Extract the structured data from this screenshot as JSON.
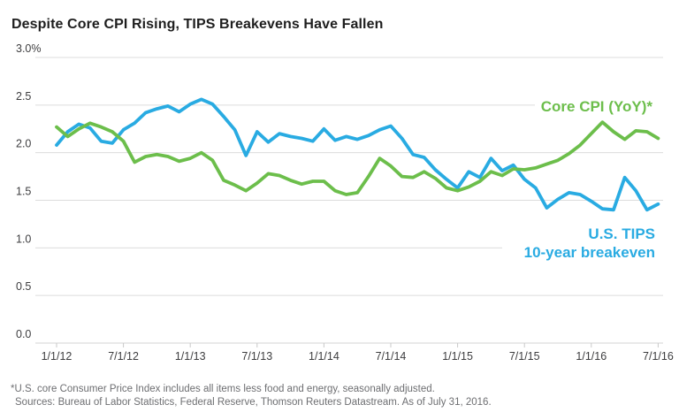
{
  "title": "Despite Core CPI Rising, TIPS Breakevens Have Fallen",
  "labels": {
    "core_cpi_label": "Core CPI (YoY)*",
    "tips_label_line1": "U.S. TIPS",
    "tips_label_line2": "10-year breakeven"
  },
  "footnotes": {
    "line1": "*U.S. core Consumer Price Index includes all items less food and energy, seasonally adjusted.",
    "line2": "Sources: Bureau of Labor Statistics, Federal Reserve, Thomson Reuters Datastream. As of July 31, 2016."
  },
  "colors": {
    "core_cpi_green": "#6cbe4b",
    "tips_blue": "#29abe2",
    "gridline": "#dcdcdc",
    "axis_line": "#d3d3d3",
    "tick": "#c9c9c9",
    "axis_text": "#3d3d3f",
    "title_text": "#1e1e1e",
    "footnote_text": "#6d6e71"
  },
  "chart_data": {
    "type": "line",
    "title": "Despite Core CPI Rising, TIPS Breakevens Have Fallen",
    "xlabel": "",
    "ylabel": "",
    "ylim": [
      0.0,
      3.0
    ],
    "grid": "horizontal",
    "legend_position": "inline-annotations",
    "y_tick_values": [
      3.0,
      2.5,
      2.0,
      1.5,
      1.0,
      0.5,
      0.0
    ],
    "y_tick_labels": [
      "3.0%",
      "2.5",
      "2.0",
      "1.5",
      "1.0",
      "0.5",
      "0.0"
    ],
    "x_tick_labels": [
      "1/1/12",
      "7/1/12",
      "1/1/13",
      "7/1/13",
      "1/1/14",
      "7/1/14",
      "1/1/15",
      "7/1/15",
      "1/1/16",
      "7/1/16"
    ],
    "x_tick_every_n_months": 6,
    "x": [
      "1/12",
      "2/12",
      "3/12",
      "4/12",
      "5/12",
      "6/12",
      "7/12",
      "8/12",
      "9/12",
      "10/12",
      "11/12",
      "12/12",
      "1/13",
      "2/13",
      "3/13",
      "4/13",
      "5/13",
      "6/13",
      "7/13",
      "8/13",
      "9/13",
      "10/13",
      "11/13",
      "12/13",
      "1/14",
      "2/14",
      "3/14",
      "4/14",
      "5/14",
      "6/14",
      "7/14",
      "8/14",
      "9/14",
      "10/14",
      "11/14",
      "12/14",
      "1/15",
      "2/15",
      "3/15",
      "4/15",
      "5/15",
      "6/15",
      "7/15",
      "8/15",
      "9/15",
      "10/15",
      "11/15",
      "12/15",
      "1/16",
      "2/16",
      "3/16",
      "4/16",
      "5/16",
      "6/16",
      "7/16"
    ],
    "series": [
      {
        "name": "U.S. TIPS 10-year breakeven",
        "color": "#29abe2",
        "values": [
          2.08,
          2.22,
          2.3,
          2.26,
          2.12,
          2.1,
          2.24,
          2.31,
          2.42,
          2.46,
          2.49,
          2.43,
          2.51,
          2.56,
          2.51,
          2.38,
          2.24,
          1.97,
          2.22,
          2.11,
          2.2,
          2.17,
          2.15,
          2.12,
          2.25,
          2.13,
          2.17,
          2.14,
          2.18,
          2.24,
          2.28,
          2.15,
          1.98,
          1.95,
          1.82,
          1.72,
          1.63,
          1.8,
          1.74,
          1.94,
          1.81,
          1.87,
          1.72,
          1.63,
          1.42,
          1.51,
          1.58,
          1.56,
          1.49,
          1.41,
          1.4,
          1.74,
          1.6,
          1.4,
          1.46
        ]
      },
      {
        "name": "Core CPI (YoY)*",
        "color": "#6cbe4b",
        "values": [
          2.27,
          2.17,
          2.25,
          2.31,
          2.27,
          2.22,
          2.12,
          1.9,
          1.96,
          1.98,
          1.96,
          1.91,
          1.94,
          2.0,
          1.92,
          1.71,
          1.66,
          1.6,
          1.68,
          1.78,
          1.76,
          1.71,
          1.67,
          1.7,
          1.7,
          1.6,
          1.56,
          1.58,
          1.75,
          1.94,
          1.86,
          1.75,
          1.74,
          1.8,
          1.73,
          1.63,
          1.6,
          1.64,
          1.7,
          1.8,
          1.76,
          1.83,
          1.82,
          1.84,
          1.88,
          1.92,
          1.99,
          2.08,
          2.2,
          2.32,
          2.22,
          2.14,
          2.23,
          2.22,
          2.15
        ]
      }
    ]
  }
}
